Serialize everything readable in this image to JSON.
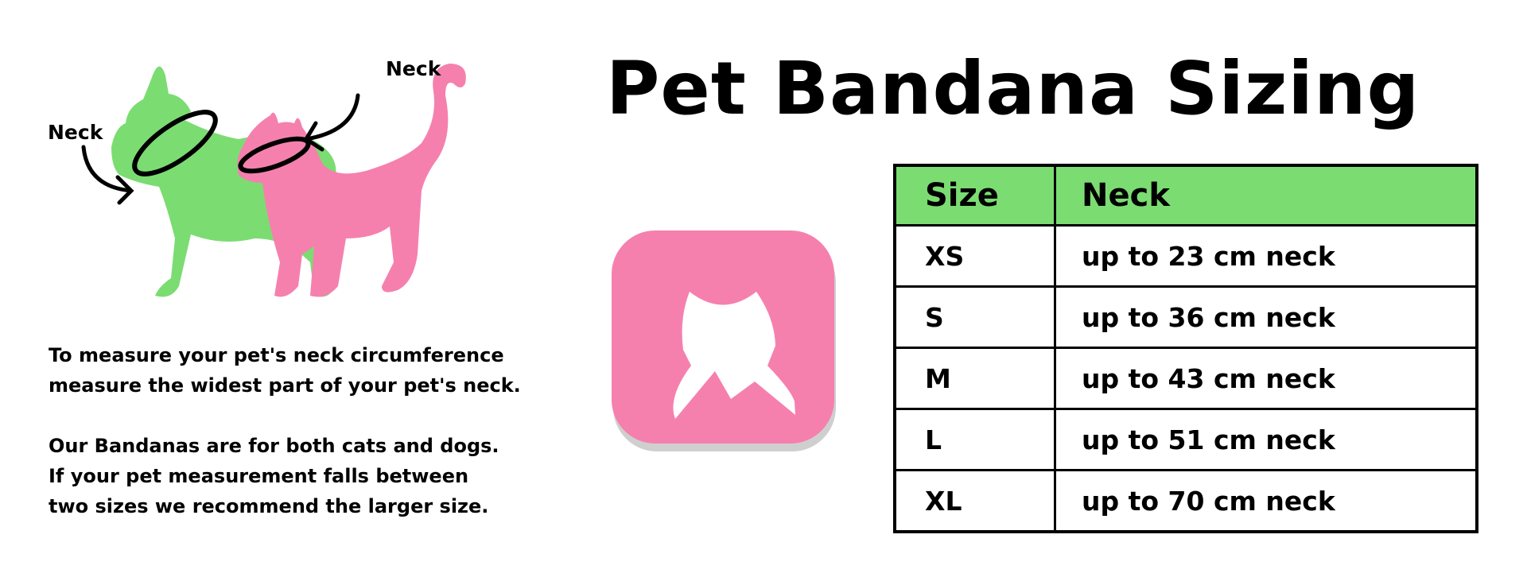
{
  "title": "Pet Bandana Sizing",
  "illustration": {
    "neck_label_left": "Neck",
    "neck_label_right": "Neck"
  },
  "description": {
    "paragraph1": [
      "To measure your pet's neck circumference",
      "measure the widest part of your pet's neck."
    ],
    "paragraph2": [
      "Our Bandanas are for both cats and dogs.",
      "If your pet measurement falls between",
      "two sizes we recommend the larger size."
    ]
  },
  "icon": {
    "name": "bandana-icon",
    "color": "#f580ae"
  },
  "colors": {
    "dog": "#7bdc72",
    "cat": "#f580ae",
    "header": "#7bdc72"
  },
  "table": {
    "headers": [
      "Size",
      "Neck"
    ],
    "rows": [
      {
        "size": "XS",
        "neck": "up to 23 cm neck"
      },
      {
        "size": "S",
        "neck": "up to 36 cm neck"
      },
      {
        "size": "M",
        "neck": "up to 43 cm neck"
      },
      {
        "size": "L",
        "neck": "up to 51 cm neck"
      },
      {
        "size": "XL",
        "neck": "up to 70 cm neck"
      }
    ]
  }
}
